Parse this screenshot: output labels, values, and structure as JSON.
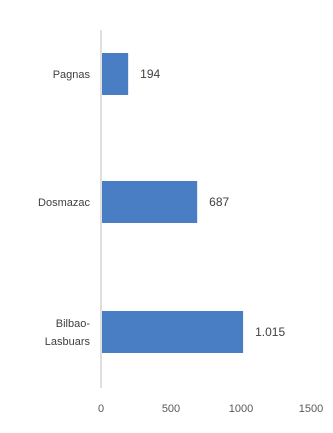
{
  "chart_data": {
    "type": "bar",
    "orientation": "horizontal",
    "categories": [
      {
        "lines": [
          "Pagnas"
        ]
      },
      {
        "lines": [
          "Dosmazac"
        ]
      },
      {
        "lines": [
          "Bilbao-",
          "Lasbuars"
        ]
      }
    ],
    "values": [
      194,
      687,
      1015
    ],
    "data_labels": [
      "194",
      "687",
      "1.015"
    ],
    "x_ticks": [
      "0",
      "500",
      "1000",
      "1500"
    ],
    "xlim": [
      0,
      1500
    ],
    "title": "",
    "xlabel": "",
    "ylabel": "",
    "grid": false,
    "legend": "none",
    "bar_color": "#4a7ec4",
    "axis_color": "#bfbfbf"
  }
}
